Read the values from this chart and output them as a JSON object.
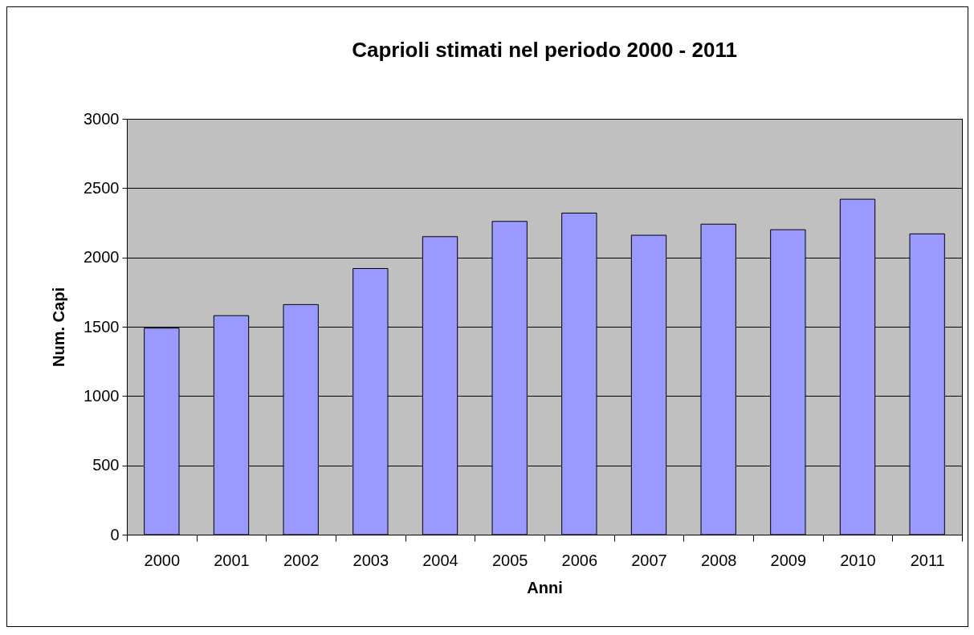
{
  "chart_data": {
    "type": "bar",
    "title": "Caprioli stimati nel periodo 2000 - 2011",
    "xlabel": "Anni",
    "ylabel": "Num. Capi",
    "categories": [
      "2000",
      "2001",
      "2002",
      "2003",
      "2004",
      "2005",
      "2006",
      "2007",
      "2008",
      "2009",
      "2010",
      "2011"
    ],
    "values": [
      1490,
      1580,
      1660,
      1920,
      2150,
      2260,
      2320,
      2160,
      2240,
      2200,
      2420,
      2170
    ],
    "color": "#9999ff",
    "ylim": [
      0,
      3000
    ],
    "yticks": [
      0,
      500,
      1000,
      1500,
      2000,
      2500,
      3000
    ],
    "grid": "y"
  }
}
